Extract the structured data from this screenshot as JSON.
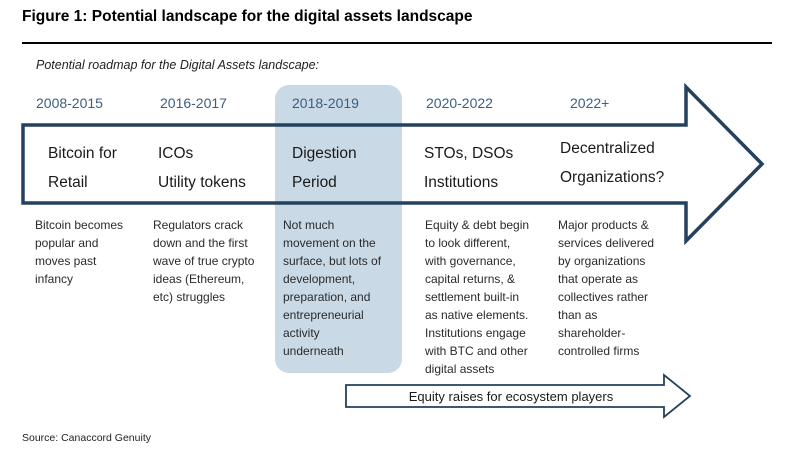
{
  "figure_title": "Figure 1: Potential landscape for the digital assets landscape",
  "subtitle": "Potential roadmap for the Digital Assets landscape:",
  "stages": [
    {
      "years": "2008-2015",
      "label_line1": "Bitcoin for",
      "label_line2": "Retail",
      "description": [
        "Bitcoin becomes",
        "popular and",
        "moves past",
        "infancy"
      ]
    },
    {
      "years": "2016-2017",
      "label_line1": "ICOs",
      "label_line2": "Utility tokens",
      "description": [
        "Regulators crack",
        "down and the first",
        "wave of true crypto",
        "ideas (Ethereum,",
        "etc) struggles"
      ]
    },
    {
      "years": "2018-2019",
      "label_line1": "Digestion",
      "label_line2": "Period",
      "highlighted": true,
      "description": [
        "Not much",
        "movement on the",
        "surface, but lots of",
        "development,",
        "preparation, and",
        "entrepreneurial",
        "activity",
        "underneath"
      ]
    },
    {
      "years": "2020-2022",
      "label_line1": "STOs, DSOs",
      "label_line2": "Institutions",
      "description": [
        "Equity & debt begin",
        "to look different,",
        "with governance,",
        "capital returns, &",
        "settlement built-in",
        "as native elements.",
        "Institutions engage",
        "with BTC and other",
        "digital assets"
      ]
    },
    {
      "years": "2022+",
      "label_line1": "Decentralized",
      "label_line2": "Organizations?",
      "description": [
        "Major products &",
        "services delivered",
        "by organizations",
        "that operate as",
        "collectives rather",
        "than as",
        "shareholder-",
        "controlled firms"
      ]
    }
  ],
  "banner": "Equity raises for ecosystem players",
  "source": "Source: Canaccord Genuity",
  "colors": {
    "year_text": "#3b5f80",
    "highlight": "#c9d9e6",
    "arrow_outline": "#24415e"
  }
}
